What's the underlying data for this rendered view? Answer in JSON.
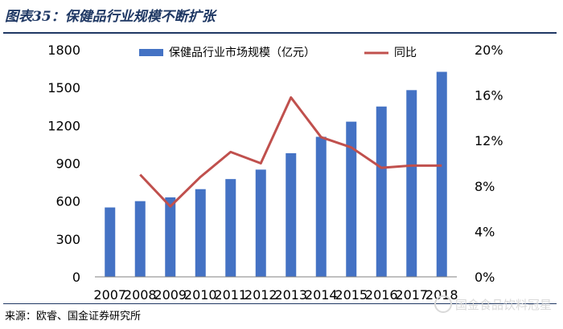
{
  "figure": {
    "title": "图表35：保健品行业规模不断扩张",
    "source": "来源：欧睿、国金证券研究所",
    "watermark": "国金食品饮料冠星"
  },
  "colors": {
    "bar": "#4472c4",
    "line": "#c0504d",
    "rule": "#1f3864"
  },
  "chart_data": {
    "type": "bar",
    "categories": [
      "2007",
      "2008",
      "2009",
      "2010",
      "2011",
      "2012",
      "2013",
      "2014",
      "2015",
      "2016",
      "2017",
      "2018"
    ],
    "series": [
      {
        "name": "保健品行业市场规模（亿元）",
        "type": "bar",
        "axis": "left",
        "values": [
          550,
          600,
          630,
          695,
          775,
          850,
          980,
          1110,
          1230,
          1350,
          1480,
          1625
        ]
      },
      {
        "name": "同比",
        "type": "line",
        "axis": "right",
        "values": [
          null,
          9.0,
          6.2,
          8.8,
          11.0,
          10.0,
          15.8,
          12.3,
          11.4,
          9.6,
          9.8,
          9.8
        ]
      }
    ],
    "yleft": {
      "min": 0,
      "max": 1800,
      "ticks": [
        "0",
        "300",
        "600",
        "900",
        "1200",
        "1500",
        "1800"
      ]
    },
    "yright": {
      "min": 0,
      "max": 20,
      "ticks": [
        "0%",
        "4%",
        "8%",
        "12%",
        "16%",
        "20%"
      ]
    },
    "legend": "top",
    "grid": false
  }
}
